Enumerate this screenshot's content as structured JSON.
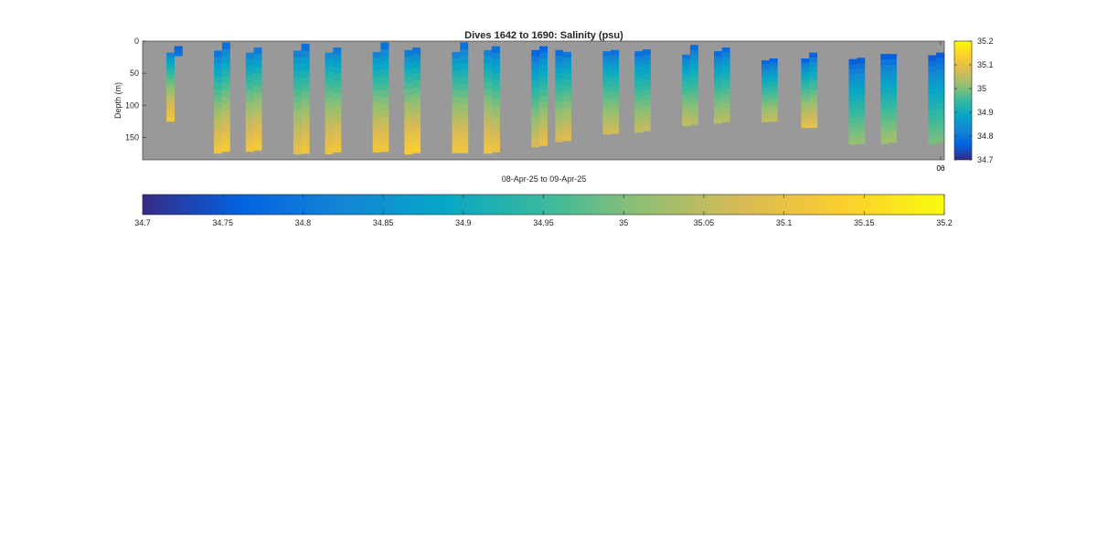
{
  "chart_data": {
    "type": "heatmap",
    "title": "Dives 1642 to 1690: Salinity (psu)",
    "xlabel": "08-Apr-25 to 09-Apr-25",
    "ylabel": "Depth (m)",
    "ylim": [
      0,
      185
    ],
    "y_reversed": true,
    "y_ticks": [
      0,
      50,
      100,
      150
    ],
    "x_tick_labels": [
      "00",
      "06"
    ],
    "colorbar": {
      "range": [
        34.7,
        35.2
      ],
      "ticks": [
        34.7,
        34.8,
        34.9,
        35,
        35.1,
        35.2
      ],
      "tick_labels": [
        "34.7",
        "34.8",
        "34.9",
        "35",
        "35.1",
        "35.2"
      ]
    },
    "bottom_colorbar": {
      "range": [
        34.7,
        35.2
      ],
      "ticks": [
        34.7,
        34.75,
        34.8,
        34.85,
        34.9,
        34.95,
        35,
        35.05,
        35.1,
        35.15,
        35.2
      ],
      "tick_labels": [
        "34.7",
        "34.75",
        "34.8",
        "34.85",
        "34.9",
        "34.95",
        "35",
        "35.05",
        "35.1",
        "35.15",
        "35.2"
      ]
    },
    "colormap": [
      "#352a87",
      "#0363e1",
      "#1485d4",
      "#06a7c6",
      "#38b99e",
      "#92bf73",
      "#d9ba56",
      "#fcce2e",
      "#f9fb0e"
    ],
    "background_color": "#999999",
    "profiles": [
      {
        "x": 0.03,
        "top": 18,
        "bottom": 125,
        "s_top": 34.78,
        "s_bottom": 35.12
      },
      {
        "x": 0.04,
        "top": 8,
        "bottom": 23,
        "s_top": 34.75,
        "s_bottom": 34.8
      },
      {
        "x": 0.09,
        "top": 15,
        "bottom": 175,
        "s_top": 34.75,
        "s_bottom": 35.12
      },
      {
        "x": 0.1,
        "top": 2,
        "bottom": 172,
        "s_top": 34.74,
        "s_bottom": 35.13
      },
      {
        "x": 0.13,
        "top": 18,
        "bottom": 172,
        "s_top": 34.78,
        "s_bottom": 35.12
      },
      {
        "x": 0.14,
        "top": 10,
        "bottom": 170,
        "s_top": 34.76,
        "s_bottom": 35.13
      },
      {
        "x": 0.19,
        "top": 15,
        "bottom": 176,
        "s_top": 34.78,
        "s_bottom": 35.1
      },
      {
        "x": 0.2,
        "top": 4,
        "bottom": 175,
        "s_top": 34.74,
        "s_bottom": 35.12
      },
      {
        "x": 0.23,
        "top": 18,
        "bottom": 176,
        "s_top": 34.8,
        "s_bottom": 35.11
      },
      {
        "x": 0.24,
        "top": 10,
        "bottom": 173,
        "s_top": 34.76,
        "s_bottom": 35.12
      },
      {
        "x": 0.29,
        "top": 17,
        "bottom": 173,
        "s_top": 34.78,
        "s_bottom": 35.12
      },
      {
        "x": 0.3,
        "top": 2,
        "bottom": 172,
        "s_top": 34.74,
        "s_bottom": 35.12
      },
      {
        "x": 0.33,
        "top": 14,
        "bottom": 176,
        "s_top": 34.76,
        "s_bottom": 35.14
      },
      {
        "x": 0.34,
        "top": 10,
        "bottom": 174,
        "s_top": 34.75,
        "s_bottom": 35.14
      },
      {
        "x": 0.39,
        "top": 17,
        "bottom": 174,
        "s_top": 34.78,
        "s_bottom": 35.12
      },
      {
        "x": 0.4,
        "top": 2,
        "bottom": 174,
        "s_top": 34.74,
        "s_bottom": 35.12
      },
      {
        "x": 0.43,
        "top": 14,
        "bottom": 175,
        "s_top": 34.78,
        "s_bottom": 35.12
      },
      {
        "x": 0.44,
        "top": 8,
        "bottom": 173,
        "s_top": 34.74,
        "s_bottom": 35.11
      },
      {
        "x": 0.49,
        "top": 14,
        "bottom": 165,
        "s_top": 34.72,
        "s_bottom": 35.08
      },
      {
        "x": 0.5,
        "top": 8,
        "bottom": 163,
        "s_top": 34.72,
        "s_bottom": 35.1
      },
      {
        "x": 0.52,
        "top": 14,
        "bottom": 157,
        "s_top": 34.74,
        "s_bottom": 35.08
      },
      {
        "x": 0.53,
        "top": 17,
        "bottom": 155,
        "s_top": 34.76,
        "s_bottom": 35.09
      },
      {
        "x": 0.58,
        "top": 16,
        "bottom": 145,
        "s_top": 34.76,
        "s_bottom": 35.07
      },
      {
        "x": 0.59,
        "top": 14,
        "bottom": 144,
        "s_top": 34.75,
        "s_bottom": 35.07
      },
      {
        "x": 0.62,
        "top": 16,
        "bottom": 142,
        "s_top": 34.75,
        "s_bottom": 35.06
      },
      {
        "x": 0.63,
        "top": 13,
        "bottom": 140,
        "s_top": 34.74,
        "s_bottom": 35.06
      },
      {
        "x": 0.68,
        "top": 21,
        "bottom": 132,
        "s_top": 34.76,
        "s_bottom": 35.06
      },
      {
        "x": 0.69,
        "top": 6,
        "bottom": 130,
        "s_top": 34.74,
        "s_bottom": 35.05
      },
      {
        "x": 0.72,
        "top": 16,
        "bottom": 128,
        "s_top": 34.74,
        "s_bottom": 35.05
      },
      {
        "x": 0.73,
        "top": 10,
        "bottom": 126,
        "s_top": 34.74,
        "s_bottom": 35.05
      },
      {
        "x": 0.78,
        "top": 30,
        "bottom": 126,
        "s_top": 34.72,
        "s_bottom": 35.06
      },
      {
        "x": 0.79,
        "top": 27,
        "bottom": 125,
        "s_top": 34.72,
        "s_bottom": 35.06
      },
      {
        "x": 0.83,
        "top": 27,
        "bottom": 135,
        "s_top": 34.72,
        "s_bottom": 35.1
      },
      {
        "x": 0.84,
        "top": 18,
        "bottom": 135,
        "s_top": 34.72,
        "s_bottom": 35.1
      },
      {
        "x": 0.89,
        "top": 28,
        "bottom": 161,
        "s_top": 34.72,
        "s_bottom": 35.02
      },
      {
        "x": 0.9,
        "top": 26,
        "bottom": 160,
        "s_top": 34.72,
        "s_bottom": 35.02
      },
      {
        "x": 0.93,
        "top": 20,
        "bottom": 160,
        "s_top": 34.72,
        "s_bottom": 35.03
      },
      {
        "x": 0.94,
        "top": 20,
        "bottom": 158,
        "s_top": 34.72,
        "s_bottom": 35.03
      },
      {
        "x": 0.99,
        "top": 22,
        "bottom": 160,
        "s_top": 34.72,
        "s_bottom": 35.0
      },
      {
        "x": 1.0,
        "top": 18,
        "bottom": 158,
        "s_top": 34.72,
        "s_bottom": 35.0
      }
    ]
  }
}
